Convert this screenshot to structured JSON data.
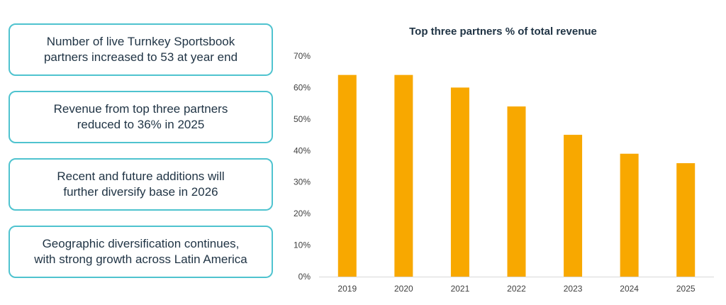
{
  "callouts": [
    {
      "text": "Number of live Turnkey Sportsbook\npartners increased to 53 at year end"
    },
    {
      "text": "Revenue from top three partners\nreduced to 36% in 2025"
    },
    {
      "text": "Recent and future additions will\nfurther diversify base in 2026"
    },
    {
      "text": "Geographic diversification continues,\nwith strong growth across Latin America"
    }
  ],
  "colors": {
    "border": "#4fc3cf",
    "bar": "#f8a800",
    "text": "#1f3344",
    "axis_text": "#404040"
  },
  "chart_data": {
    "type": "bar",
    "title": "Top three partners % of total revenue",
    "categories": [
      "2019",
      "2020",
      "2021",
      "2022",
      "2023",
      "2024",
      "2025"
    ],
    "values": [
      64,
      64,
      60,
      54,
      45,
      39,
      36
    ],
    "ylim": [
      0,
      70
    ],
    "yticks": [
      0,
      10,
      20,
      30,
      40,
      50,
      60,
      70
    ],
    "ytick_labels": [
      "0%",
      "10%",
      "20%",
      "30%",
      "40%",
      "50%",
      "60%",
      "70%"
    ],
    "xlabel": "",
    "ylabel": "",
    "grid": false,
    "legend": "none"
  }
}
